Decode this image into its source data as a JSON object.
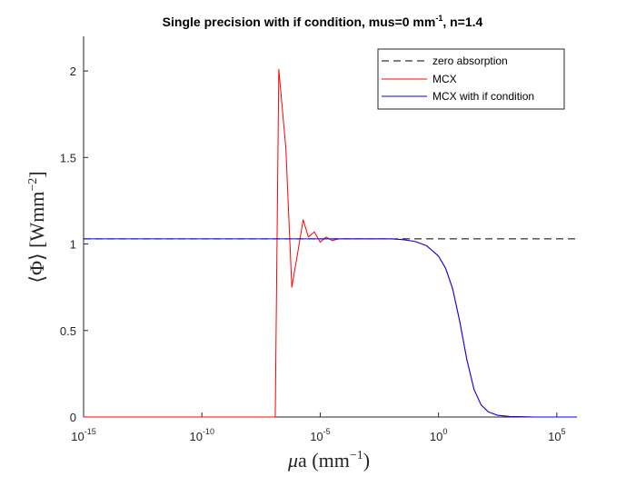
{
  "chart_data": {
    "type": "line",
    "title": {
      "text_before": "Single precision with if condition, mus=0 mm",
      "superscript": "-1",
      "text_after": ", n=1.4"
    },
    "xlabel": {
      "symbol": "μ",
      "subscript": "a",
      "unit_open": " (mm",
      "unit_exponent": "−1",
      "unit_close": ")"
    },
    "ylabel": {
      "text": "⟨Φ⟩ [Wmm",
      "exponent": "−2",
      "close": "]"
    },
    "x_scale": "log",
    "x_log_range": [
      -15,
      5.85
    ],
    "ylim": [
      0,
      2.2
    ],
    "x_ticks": [
      {
        "base": "10",
        "exp": "-15",
        "log": -15
      },
      {
        "base": "10",
        "exp": "-10",
        "log": -10
      },
      {
        "base": "10",
        "exp": "-5",
        "log": -5
      },
      {
        "base": "10",
        "exp": "0",
        "log": 0
      },
      {
        "base": "10",
        "exp": "5",
        "log": 5
      }
    ],
    "y_ticks": [
      {
        "label": "0",
        "value": 0
      },
      {
        "label": "0.5",
        "value": 0.5
      },
      {
        "label": "1",
        "value": 1
      },
      {
        "label": "1.5",
        "value": 1.5
      },
      {
        "label": "2",
        "value": 2
      }
    ],
    "grid": false,
    "legend_position": "top-right",
    "series": [
      {
        "name": "zero absorption",
        "color": "#000000",
        "style": "dashed",
        "log_x": [
          -15,
          5.85
        ],
        "y": [
          1.03,
          1.03
        ]
      },
      {
        "name": "MCX",
        "color": "#ff0000",
        "style": "solid",
        "log_x": [
          -15,
          -6.9,
          -6.75,
          -6.45,
          -6.2,
          -5.95,
          -5.72,
          -5.5,
          -5.25,
          -5.0,
          -4.75,
          -4.5,
          -4.2,
          -3.8,
          -3.0,
          -2.0,
          -1.5,
          -1.0,
          -0.5,
          0.0,
          0.3,
          0.6,
          0.9,
          1.2,
          1.5,
          1.8,
          2.1,
          2.5,
          3.0,
          4.0,
          5.85
        ],
        "y": [
          0,
          0,
          2.01,
          1.55,
          0.75,
          0.95,
          1.14,
          1.04,
          1.07,
          1.01,
          1.04,
          1.02,
          1.03,
          1.03,
          1.03,
          1.03,
          1.025,
          1.015,
          0.99,
          0.93,
          0.86,
          0.74,
          0.55,
          0.33,
          0.16,
          0.07,
          0.03,
          0.01,
          0.003,
          0.0,
          0.0
        ]
      },
      {
        "name": "MCX with if condition",
        "color": "#0000ff",
        "style": "solid",
        "log_x": [
          -15,
          -5,
          -3,
          -2.0,
          -1.5,
          -1.0,
          -0.5,
          0.0,
          0.3,
          0.6,
          0.9,
          1.2,
          1.5,
          1.8,
          2.1,
          2.5,
          3.0,
          4.0,
          5.85
        ],
        "y": [
          1.03,
          1.03,
          1.03,
          1.03,
          1.025,
          1.015,
          0.99,
          0.93,
          0.86,
          0.74,
          0.55,
          0.33,
          0.16,
          0.07,
          0.03,
          0.01,
          0.003,
          0.0,
          0.0
        ]
      }
    ]
  }
}
